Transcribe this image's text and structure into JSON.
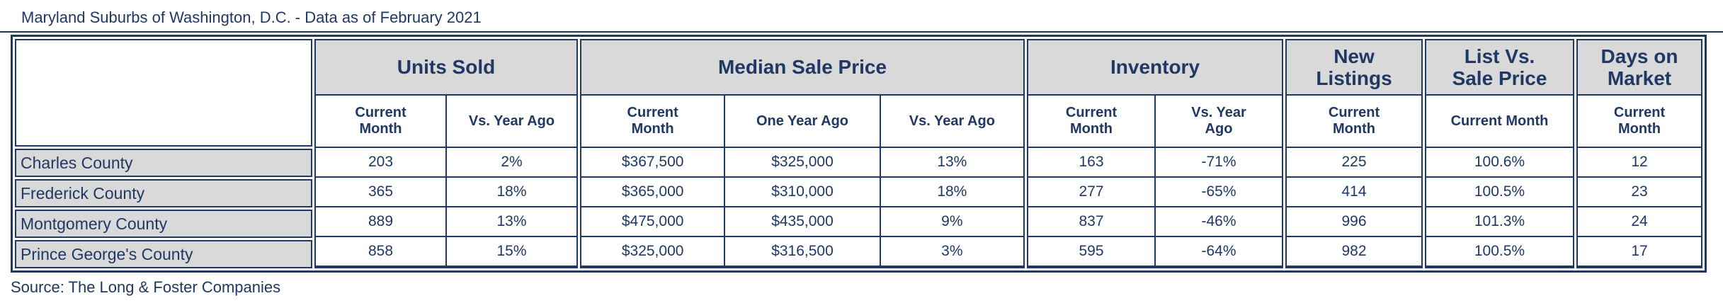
{
  "chart_data": {
    "type": "table",
    "title": "Maryland Suburbs of Washington, D.C. - Data as of February 2021",
    "source": "Source: The Long & Foster Companies",
    "colors": {
      "navy": "#1F3864",
      "header_fill": "#D9D9D9"
    },
    "column_groups": [
      {
        "label": "Units Sold",
        "subcols": [
          "Current\nMonth",
          "Vs. Year Ago"
        ]
      },
      {
        "label": "Median Sale Price",
        "subcols": [
          "Current\nMonth",
          "One Year Ago",
          "Vs. Year Ago"
        ]
      },
      {
        "label": "Inventory",
        "subcols": [
          "Current\nMonth",
          "Vs. Year\nAgo"
        ]
      },
      {
        "label": "New\nListings",
        "subcols": [
          "Current\nMonth"
        ]
      },
      {
        "label": "List Vs.\nSale Price",
        "subcols": [
          "Current Month"
        ]
      },
      {
        "label": "Days on\nMarket",
        "subcols": [
          "Current\nMonth"
        ]
      }
    ],
    "flat_columns": [
      "Units Sold - Current Month",
      "Units Sold - Vs. Year Ago",
      "Median Sale Price - Current Month",
      "Median Sale Price - One Year Ago",
      "Median Sale Price - Vs. Year Ago",
      "Inventory - Current Month",
      "Inventory - Vs. Year Ago",
      "New Listings - Current Month",
      "List Vs. Sale Price - Current Month",
      "Days on Market - Current Month"
    ],
    "rows": [
      {
        "name": "Charles County",
        "values": [
          "203",
          "2%",
          "$367,500",
          "$325,000",
          "13%",
          "163",
          "-71%",
          "225",
          "100.6%",
          "12"
        ]
      },
      {
        "name": "Frederick County",
        "values": [
          "365",
          "18%",
          "$365,000",
          "$310,000",
          "18%",
          "277",
          "-65%",
          "414",
          "100.5%",
          "23"
        ]
      },
      {
        "name": "Montgomery County",
        "values": [
          "889",
          "13%",
          "$475,000",
          "$435,000",
          "9%",
          "837",
          "-46%",
          "996",
          "101.3%",
          "24"
        ]
      },
      {
        "name": "Prince George's County",
        "values": [
          "858",
          "15%",
          "$325,000",
          "$316,500",
          "3%",
          "595",
          "-64%",
          "982",
          "100.5%",
          "17"
        ]
      }
    ]
  }
}
